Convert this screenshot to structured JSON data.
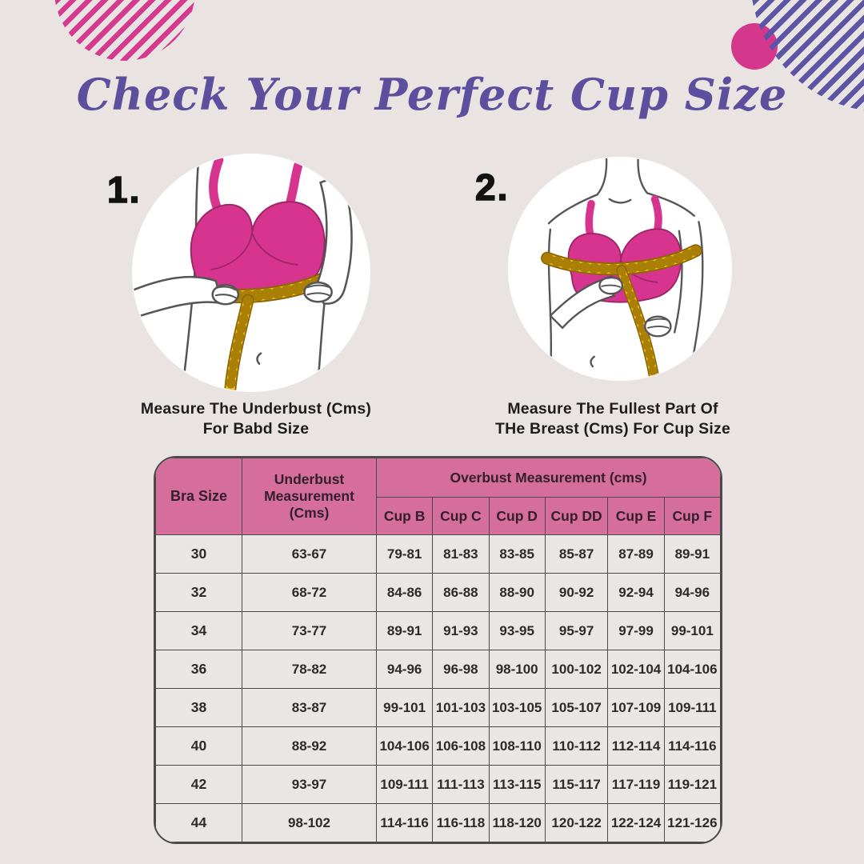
{
  "colors": {
    "page_bg": "#e9e4e1",
    "title_purple": "#5b4f9e",
    "accent_magenta": "#d5378d",
    "stripe_pink": "#d63a90",
    "stripe_purple": "#5c55a6",
    "table_header_pink": "#d66e9b",
    "tape_yellow": "#f4bd13",
    "table_border": "#4a4a4a"
  },
  "header": {
    "title": "Check Your Perfect Cup Size"
  },
  "steps": [
    {
      "number": "1.",
      "illustration": "underbust-measurement-figure",
      "caption": [
        "Measure The Underbust (Cms)",
        "For Babd Size"
      ]
    },
    {
      "number": "2.",
      "illustration": "overbust-measurement-figure",
      "caption": [
        "Measure The  Fullest Part Of",
        "THe Breast (Cms) For Cup Size"
      ]
    }
  ],
  "size_table": {
    "bra_size_header": "Bra Size",
    "underbust_header": "Underbust Measurement (Cms)",
    "overbust_group_header": "Overbust Measurement (cms)",
    "cup_headers": [
      "Cup B",
      "Cup C",
      "Cup D",
      "Cup DD",
      "Cup E",
      "Cup F"
    ],
    "rows": [
      {
        "bra_size": "30",
        "underbust": "63-67",
        "cups": [
          "79-81",
          "81-83",
          "83-85",
          "85-87",
          "87-89",
          "89-91"
        ]
      },
      {
        "bra_size": "32",
        "underbust": "68-72",
        "cups": [
          "84-86",
          "86-88",
          "88-90",
          "90-92",
          "92-94",
          "94-96"
        ]
      },
      {
        "bra_size": "34",
        "underbust": "73-77",
        "cups": [
          "89-91",
          "91-93",
          "93-95",
          "95-97",
          "97-99",
          "99-101"
        ]
      },
      {
        "bra_size": "36",
        "underbust": "78-82",
        "cups": [
          "94-96",
          "96-98",
          "98-100",
          "100-102",
          "102-104",
          "104-106"
        ]
      },
      {
        "bra_size": "38",
        "underbust": "83-87",
        "cups": [
          "99-101",
          "101-103",
          "103-105",
          "105-107",
          "107-109",
          "109-111"
        ]
      },
      {
        "bra_size": "40",
        "underbust": "88-92",
        "cups": [
          "104-106",
          "106-108",
          "108-110",
          "110-112",
          "112-114",
          "114-116"
        ]
      },
      {
        "bra_size": "42",
        "underbust": "93-97",
        "cups": [
          "109-111",
          "111-113",
          "113-115",
          "115-117",
          "117-119",
          "119-121"
        ]
      },
      {
        "bra_size": "44",
        "underbust": "98-102",
        "cups": [
          "114-116",
          "116-118",
          "118-120",
          "120-122",
          "122-124",
          "121-126"
        ]
      }
    ]
  }
}
